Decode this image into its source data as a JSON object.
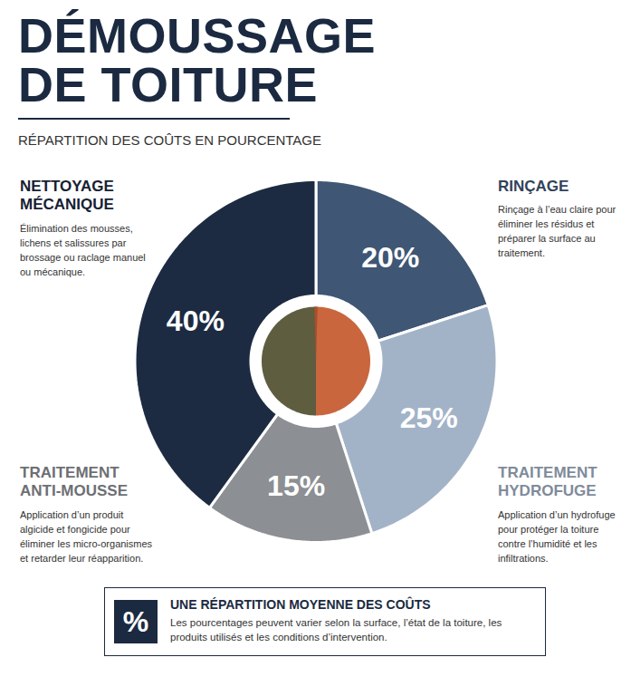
{
  "chart_data": {
    "type": "pie",
    "title": "DÉMOUSSAGE DE TOITURE",
    "subtitle": "RÉPARTITION DES COÛTS EN POURCENTAGE",
    "categories": [
      "RINÇAGE",
      "TRAITEMENT HYDROFUGE",
      "TRAITEMENT ANTI-MOUSSE",
      "NETTOYAGE MÉCANIQUE"
    ],
    "values": [
      20,
      25,
      15,
      40
    ],
    "value_labels": [
      "20%",
      "25%",
      "15%",
      "40%"
    ],
    "colors": [
      "#3f5674",
      "#a3b3c7",
      "#8c8f93",
      "#1c2b42"
    ],
    "descriptions": [
      "Rinçage à l’eau claire pour éliminer les résidus et préparer la surface au traitement.",
      "Application d’un hydrofuge pour protéger la toiture contre l’humidité et les infiltrations.",
      "Application d’un produit algicide et fongicide pour éliminer les micro-organismes et retarder leur réapparition.",
      "Élimination des mousses, lichens et salissures par brossage ou raclage manuel ou mécanique."
    ],
    "data_labels": true,
    "note": {
      "icon": "%",
      "title": "UNE RÉPARTITION MOYENNE DES COÛTS",
      "text": "Les pourcentages peuvent varier selon la surface, l’état de la toiture, les produits utilisés et les conditions d’intervention."
    }
  }
}
